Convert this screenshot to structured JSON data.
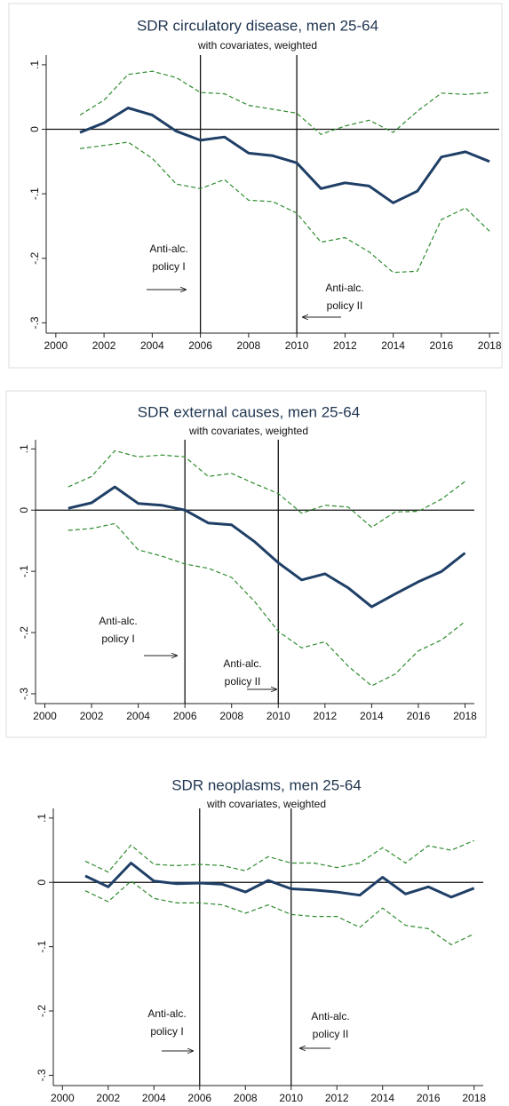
{
  "chart_data": [
    {
      "type": "line",
      "title": "SDR circulatory disease, men 25-64",
      "subtitle": "with covariates, weighted",
      "x": [
        2001,
        2002,
        2003,
        2004,
        2005,
        2006,
        2007,
        2008,
        2009,
        2010,
        2011,
        2012,
        2013,
        2014,
        2015,
        2016,
        2017,
        2018
      ],
      "series": [
        {
          "color": "#1f3f66",
          "dashed": false,
          "values": [
            -0.005,
            0.01,
            0.033,
            0.022,
            -0.003,
            -0.017,
            -0.012,
            -0.037,
            -0.041,
            -0.052,
            -0.092,
            -0.083,
            -0.088,
            -0.114,
            -0.096,
            -0.043,
            -0.035,
            -0.05
          ]
        },
        {
          "color": "#2e8b2e",
          "dashed": true,
          "values": [
            0.022,
            0.045,
            0.085,
            0.09,
            0.08,
            0.057,
            0.055,
            0.037,
            0.031,
            0.025,
            -0.008,
            0.005,
            0.014,
            -0.005,
            0.028,
            0.056,
            0.054,
            0.057
          ]
        },
        {
          "color": "#2e8b2e",
          "dashed": true,
          "values": [
            -0.03,
            -0.025,
            -0.02,
            -0.045,
            -0.085,
            -0.092,
            -0.078,
            -0.11,
            -0.112,
            -0.13,
            -0.175,
            -0.168,
            -0.19,
            -0.222,
            -0.22,
            -0.14,
            -0.122,
            -0.158
          ]
        }
      ],
      "xlim": [
        1999.6,
        2018.4
      ],
      "xticks": [
        2000,
        2002,
        2004,
        2006,
        2008,
        2010,
        2012,
        2014,
        2016,
        2018
      ],
      "ylim": [
        -0.316,
        0.115
      ],
      "yticks": [
        {
          "value": 0.1,
          "label": ".1"
        },
        0,
        {
          "value": -0.1,
          "label": "-.1"
        },
        {
          "value": -0.2,
          "label": "-.2"
        },
        {
          "value": -0.3,
          "label": "-.3"
        }
      ],
      "hline": 0,
      "vlines": [
        2006,
        2010
      ],
      "annotations": [
        {
          "lines": [
            "Anti-alc.",
            "policy I"
          ]
        },
        {
          "lines": [
            "Anti-alc.",
            "policy II"
          ]
        }
      ]
    },
    {
      "type": "line",
      "title": "SDR external causes, men 25-64",
      "subtitle": "with covariates, weighted",
      "x": [
        2001,
        2002,
        2003,
        2004,
        2005,
        2006,
        2007,
        2008,
        2009,
        2010,
        2011,
        2012,
        2013,
        2014,
        2015,
        2016,
        2017,
        2018
      ],
      "series": [
        {
          "color": "#1f3f66",
          "dashed": false,
          "values": [
            0.003,
            0.012,
            0.038,
            0.011,
            0.008,
            0,
            -0.021,
            -0.024,
            -0.052,
            -0.086,
            -0.114,
            -0.104,
            -0.127,
            -0.158,
            -0.137,
            -0.117,
            -0.1,
            -0.07
          ]
        },
        {
          "color": "#2e8b2e",
          "dashed": true,
          "values": [
            0.038,
            0.055,
            0.097,
            0.087,
            0.09,
            0.087,
            0.055,
            0.06,
            0.043,
            0.027,
            -0.005,
            0.008,
            0.005,
            -0.028,
            -0.003,
            -0.002,
            0.018,
            0.047
          ]
        },
        {
          "color": "#2e8b2e",
          "dashed": true,
          "values": [
            -0.033,
            -0.03,
            -0.022,
            -0.065,
            -0.075,
            -0.088,
            -0.095,
            -0.11,
            -0.15,
            -0.198,
            -0.225,
            -0.215,
            -0.255,
            -0.287,
            -0.268,
            -0.23,
            -0.212,
            -0.182
          ]
        }
      ],
      "xlim": [
        1999.6,
        2018.4
      ],
      "xticks": [
        2000,
        2002,
        2004,
        2006,
        2008,
        2010,
        2012,
        2014,
        2016,
        2018
      ],
      "ylim": [
        -0.316,
        0.115
      ],
      "yticks": [
        {
          "value": 0.1,
          "label": ".1"
        },
        0,
        {
          "value": -0.1,
          "label": "-.1"
        },
        {
          "value": -0.2,
          "label": "-.2"
        },
        {
          "value": -0.3,
          "label": "-.3"
        }
      ],
      "hline": 0,
      "vlines": [
        2006,
        2010
      ],
      "annotations": [
        {
          "lines": [
            "Anti-alc.",
            "policy I"
          ]
        },
        {
          "lines": [
            "Anti-alc.",
            "policy II"
          ]
        }
      ]
    },
    {
      "type": "line",
      "title": "SDR neoplasms, men 25-64",
      "subtitle": "with covariates, weighted",
      "x": [
        2001,
        2002,
        2003,
        2004,
        2005,
        2006,
        2007,
        2008,
        2009,
        2010,
        2011,
        2012,
        2013,
        2014,
        2015,
        2016,
        2017,
        2018
      ],
      "series": [
        {
          "color": "#1f3f66",
          "dashed": false,
          "values": [
            0.01,
            -0.007,
            0.03,
            0.002,
            -0.002,
            -0.001,
            -0.003,
            -0.015,
            0.003,
            -0.01,
            -0.012,
            -0.015,
            -0.02,
            0.008,
            -0.018,
            -0.007,
            -0.023,
            -0.009
          ]
        },
        {
          "color": "#2e8b2e",
          "dashed": true,
          "values": [
            0.033,
            0.016,
            0.058,
            0.028,
            0.026,
            0.028,
            0.026,
            0.018,
            0.04,
            0.03,
            0.03,
            0.023,
            0.03,
            0.054,
            0.03,
            0.057,
            0.05,
            0.065
          ]
        },
        {
          "color": "#2e8b2e",
          "dashed": true,
          "values": [
            -0.013,
            -0.03,
            0.002,
            -0.025,
            -0.032,
            -0.032,
            -0.035,
            -0.048,
            -0.035,
            -0.05,
            -0.053,
            -0.053,
            -0.07,
            -0.04,
            -0.067,
            -0.072,
            -0.097,
            -0.08
          ]
        }
      ],
      "xlim": [
        1999.6,
        2018.4
      ],
      "xticks": [
        2000,
        2002,
        2004,
        2006,
        2008,
        2010,
        2012,
        2014,
        2016,
        2018
      ],
      "ylim": [
        -0.316,
        0.115
      ],
      "yticks": [
        {
          "value": 0.1,
          "label": ".1"
        },
        0,
        {
          "value": -0.1,
          "label": "-.1"
        },
        {
          "value": -0.2,
          "label": "-.2"
        },
        {
          "value": -0.3,
          "label": "-.3"
        }
      ],
      "hline": 0,
      "vlines": [
        2006,
        2010
      ],
      "annotations": [
        {
          "lines": [
            "Anti-alc.",
            "policy I"
          ]
        },
        {
          "lines": [
            "Anti-alc.",
            "policy II"
          ]
        }
      ]
    }
  ]
}
